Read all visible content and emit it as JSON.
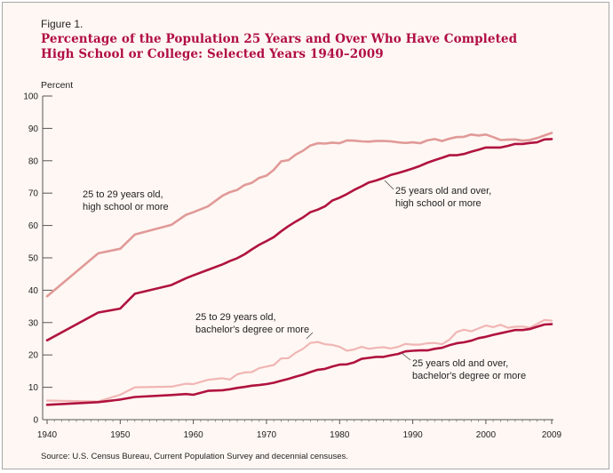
{
  "figure_label": "Figure 1.",
  "title_line1": "Percentage of the Population 25 Years and Over Who Have Completed",
  "title_line2": "High School or College: Selected Years 1940–2009",
  "ylabel": "Percent",
  "source": "Source: U.S. Census Bureau, Current Population Survey and decennial censuses.",
  "colors": {
    "frame_bg": "#fff7f3",
    "title": "#b00d45",
    "dark_series": "#b0133f",
    "light_series": "#e09a98",
    "lighter_series": "#f0b6b5"
  },
  "chart_data": {
    "type": "line",
    "xlim": [
      1940,
      2009
    ],
    "ylim": [
      0,
      100
    ],
    "x_ticks": [
      "1940",
      "1950",
      "1960",
      "1970",
      "1980",
      "1990",
      "2000",
      "2009"
    ],
    "y_ticks": [
      "0",
      "10",
      "20",
      "30",
      "40",
      "50",
      "60",
      "70",
      "80",
      "90",
      "100"
    ],
    "grid": false,
    "annotations": [
      {
        "series": 0,
        "lines": [
          "25 to 29 years old,",
          "high school or more"
        ]
      },
      {
        "series": 1,
        "lines": [
          "25 years old and over,",
          "high school or more"
        ]
      },
      {
        "series": 2,
        "lines": [
          "25 to 29 years old,",
          "bachelor's degree or more"
        ]
      },
      {
        "series": 3,
        "lines": [
          "25 years old and over,",
          "bachelor's degree or more"
        ]
      }
    ],
    "series": [
      {
        "color": "#e09a98",
        "points": [
          [
            1940,
            38.1
          ],
          [
            1947,
            51.4
          ],
          [
            1950,
            52.8
          ],
          [
            1952,
            57.2
          ],
          [
            1957,
            60.2
          ],
          [
            1959,
            63.3
          ],
          [
            1960,
            64.1
          ],
          [
            1962,
            65.9
          ],
          [
            1964,
            69.2
          ],
          [
            1965,
            70.3
          ],
          [
            1966,
            71.0
          ],
          [
            1967,
            72.5
          ],
          [
            1968,
            73.2
          ],
          [
            1969,
            74.7
          ],
          [
            1970,
            75.4
          ],
          [
            1971,
            77.2
          ],
          [
            1972,
            79.8
          ],
          [
            1973,
            80.2
          ],
          [
            1974,
            81.9
          ],
          [
            1975,
            83.1
          ],
          [
            1976,
            84.7
          ],
          [
            1977,
            85.4
          ],
          [
            1978,
            85.3
          ],
          [
            1979,
            85.6
          ],
          [
            1980,
            85.4
          ],
          [
            1981,
            86.3
          ],
          [
            1982,
            86.2
          ],
          [
            1983,
            86.0
          ],
          [
            1984,
            85.9
          ],
          [
            1985,
            86.1
          ],
          [
            1986,
            86.1
          ],
          [
            1987,
            86.0
          ],
          [
            1988,
            85.7
          ],
          [
            1989,
            85.5
          ],
          [
            1990,
            85.7
          ],
          [
            1991,
            85.4
          ],
          [
            1992,
            86.3
          ],
          [
            1993,
            86.7
          ],
          [
            1994,
            86.1
          ],
          [
            1995,
            86.8
          ],
          [
            1996,
            87.3
          ],
          [
            1997,
            87.4
          ],
          [
            1998,
            88.1
          ],
          [
            1999,
            87.8
          ],
          [
            2000,
            88.1
          ],
          [
            2001,
            87.3
          ],
          [
            2002,
            86.4
          ],
          [
            2003,
            86.5
          ],
          [
            2004,
            86.6
          ],
          [
            2005,
            86.2
          ],
          [
            2006,
            86.4
          ],
          [
            2007,
            87.0
          ],
          [
            2008,
            87.8
          ],
          [
            2009,
            88.6
          ]
        ]
      },
      {
        "color": "#b0133f",
        "points": [
          [
            1940,
            24.5
          ],
          [
            1947,
            33.1
          ],
          [
            1950,
            34.3
          ],
          [
            1952,
            38.9
          ],
          [
            1957,
            41.6
          ],
          [
            1959,
            43.7
          ],
          [
            1960,
            44.6
          ],
          [
            1962,
            46.3
          ],
          [
            1964,
            48.0
          ],
          [
            1965,
            49.0
          ],
          [
            1966,
            49.9
          ],
          [
            1967,
            51.1
          ],
          [
            1968,
            52.6
          ],
          [
            1969,
            54.0
          ],
          [
            1970,
            55.2
          ],
          [
            1971,
            56.4
          ],
          [
            1972,
            58.2
          ],
          [
            1973,
            59.8
          ],
          [
            1974,
            61.2
          ],
          [
            1975,
            62.5
          ],
          [
            1976,
            64.1
          ],
          [
            1977,
            64.9
          ],
          [
            1978,
            65.9
          ],
          [
            1979,
            67.7
          ],
          [
            1980,
            68.6
          ],
          [
            1981,
            69.7
          ],
          [
            1982,
            71.0
          ],
          [
            1983,
            72.1
          ],
          [
            1984,
            73.3
          ],
          [
            1985,
            73.9
          ],
          [
            1986,
            74.7
          ],
          [
            1987,
            75.6
          ],
          [
            1988,
            76.2
          ],
          [
            1989,
            76.9
          ],
          [
            1990,
            77.6
          ],
          [
            1991,
            78.4
          ],
          [
            1992,
            79.4
          ],
          [
            1993,
            80.2
          ],
          [
            1994,
            80.9
          ],
          [
            1995,
            81.7
          ],
          [
            1996,
            81.7
          ],
          [
            1997,
            82.1
          ],
          [
            1998,
            82.8
          ],
          [
            1999,
            83.4
          ],
          [
            2000,
            84.1
          ],
          [
            2001,
            84.1
          ],
          [
            2002,
            84.1
          ],
          [
            2003,
            84.6
          ],
          [
            2004,
            85.2
          ],
          [
            2005,
            85.2
          ],
          [
            2006,
            85.5
          ],
          [
            2007,
            85.7
          ],
          [
            2008,
            86.6
          ],
          [
            2009,
            86.7
          ]
        ]
      },
      {
        "color": "#f0b6b5",
        "points": [
          [
            1940,
            5.9
          ],
          [
            1947,
            5.6
          ],
          [
            1950,
            7.7
          ],
          [
            1952,
            10.0
          ],
          [
            1957,
            10.2
          ],
          [
            1959,
            11.1
          ],
          [
            1960,
            11.0
          ],
          [
            1962,
            12.3
          ],
          [
            1964,
            12.8
          ],
          [
            1965,
            12.4
          ],
          [
            1966,
            14.0
          ],
          [
            1967,
            14.6
          ],
          [
            1968,
            14.7
          ],
          [
            1969,
            15.9
          ],
          [
            1970,
            16.4
          ],
          [
            1971,
            16.9
          ],
          [
            1972,
            18.9
          ],
          [
            1973,
            19.0
          ],
          [
            1974,
            20.7
          ],
          [
            1975,
            21.9
          ],
          [
            1976,
            23.7
          ],
          [
            1977,
            24.0
          ],
          [
            1978,
            23.3
          ],
          [
            1979,
            23.1
          ],
          [
            1980,
            22.5
          ],
          [
            1981,
            21.3
          ],
          [
            1982,
            21.7
          ],
          [
            1983,
            22.5
          ],
          [
            1984,
            21.9
          ],
          [
            1985,
            22.2
          ],
          [
            1986,
            22.4
          ],
          [
            1987,
            22.0
          ],
          [
            1988,
            22.5
          ],
          [
            1989,
            23.4
          ],
          [
            1990,
            23.2
          ],
          [
            1991,
            23.2
          ],
          [
            1992,
            23.6
          ],
          [
            1993,
            23.7
          ],
          [
            1994,
            23.3
          ],
          [
            1995,
            24.7
          ],
          [
            1996,
            27.1
          ],
          [
            1997,
            27.8
          ],
          [
            1998,
            27.3
          ],
          [
            1999,
            28.2
          ],
          [
            2000,
            29.1
          ],
          [
            2001,
            28.6
          ],
          [
            2002,
            29.3
          ],
          [
            2003,
            28.4
          ],
          [
            2004,
            28.7
          ],
          [
            2005,
            28.8
          ],
          [
            2006,
            28.4
          ],
          [
            2007,
            29.6
          ],
          [
            2008,
            30.8
          ],
          [
            2009,
            30.6
          ]
        ]
      },
      {
        "color": "#b0133f",
        "points": [
          [
            1940,
            4.6
          ],
          [
            1947,
            5.4
          ],
          [
            1950,
            6.2
          ],
          [
            1952,
            7.0
          ],
          [
            1957,
            7.6
          ],
          [
            1959,
            7.9
          ],
          [
            1960,
            7.7
          ],
          [
            1962,
            8.9
          ],
          [
            1964,
            9.1
          ],
          [
            1965,
            9.4
          ],
          [
            1966,
            9.8
          ],
          [
            1967,
            10.1
          ],
          [
            1968,
            10.5
          ],
          [
            1969,
            10.7
          ],
          [
            1970,
            11.0
          ],
          [
            1971,
            11.4
          ],
          [
            1972,
            12.0
          ],
          [
            1973,
            12.6
          ],
          [
            1974,
            13.3
          ],
          [
            1975,
            13.9
          ],
          [
            1976,
            14.7
          ],
          [
            1977,
            15.4
          ],
          [
            1978,
            15.7
          ],
          [
            1979,
            16.4
          ],
          [
            1980,
            17.0
          ],
          [
            1981,
            17.1
          ],
          [
            1982,
            17.7
          ],
          [
            1983,
            18.8
          ],
          [
            1984,
            19.1
          ],
          [
            1985,
            19.4
          ],
          [
            1986,
            19.4
          ],
          [
            1987,
            19.9
          ],
          [
            1988,
            20.3
          ],
          [
            1989,
            21.1
          ],
          [
            1990,
            21.3
          ],
          [
            1991,
            21.4
          ],
          [
            1992,
            21.4
          ],
          [
            1993,
            21.9
          ],
          [
            1994,
            22.2
          ],
          [
            1995,
            23.0
          ],
          [
            1996,
            23.6
          ],
          [
            1997,
            23.9
          ],
          [
            1998,
            24.4
          ],
          [
            1999,
            25.2
          ],
          [
            2000,
            25.6
          ],
          [
            2001,
            26.2
          ],
          [
            2002,
            26.7
          ],
          [
            2003,
            27.2
          ],
          [
            2004,
            27.7
          ],
          [
            2005,
            27.7
          ],
          [
            2006,
            28.0
          ],
          [
            2007,
            28.7
          ],
          [
            2008,
            29.4
          ],
          [
            2009,
            29.5
          ]
        ]
      }
    ]
  }
}
